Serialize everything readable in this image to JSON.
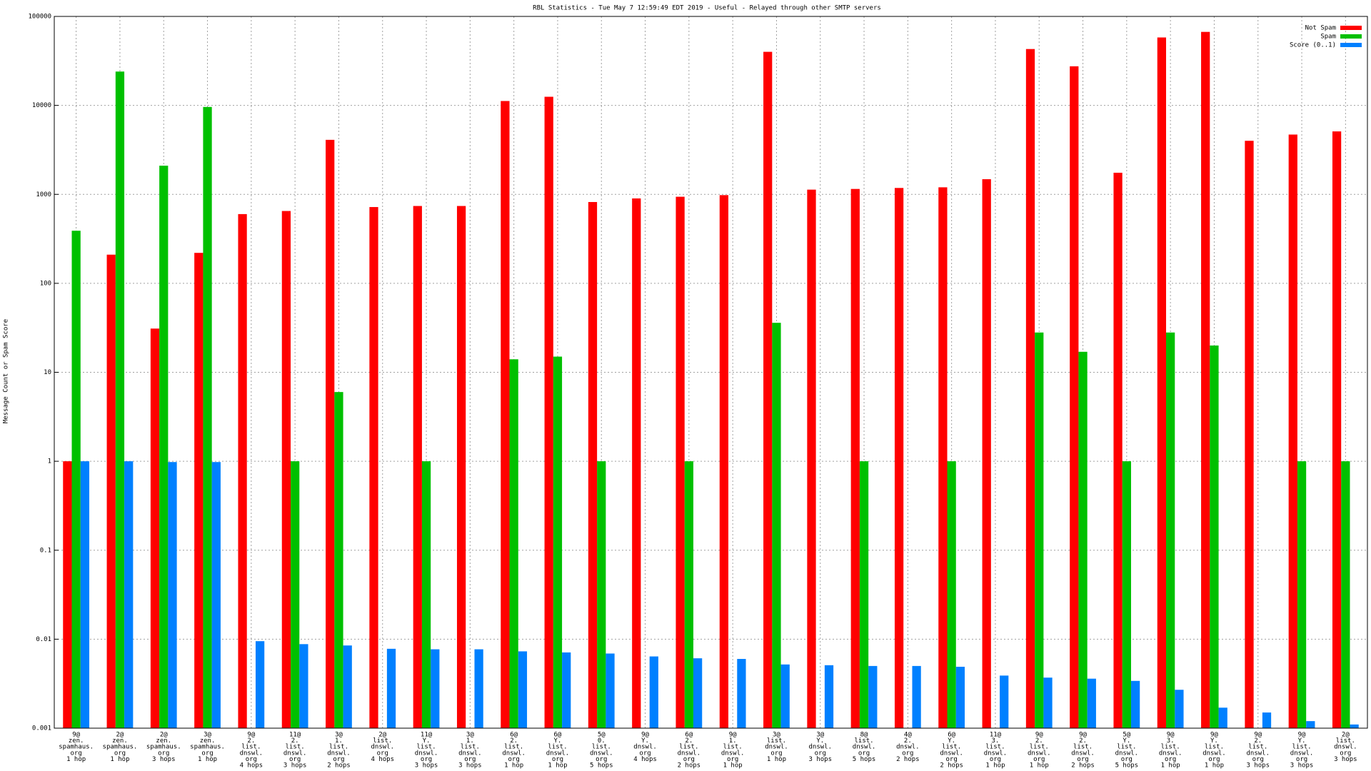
{
  "chart_data": {
    "type": "bar",
    "title": "RBL Statistics - Tue May  7 12:59:49 EDT 2019 - Useful - Relayed through other SMTP servers",
    "y_label": "Message Count or Spam Score",
    "log_y": true,
    "grid": true,
    "legend_position": "top-right",
    "ylim": [
      0.001,
      100000
    ],
    "yticks": [
      0.001,
      0.01,
      0.1,
      1,
      10,
      100,
      1000,
      10000,
      100000
    ],
    "categories": [
      [
        "9@",
        "zen.",
        "spamhaus.",
        "org",
        "1 hop"
      ],
      [
        "2@",
        "zen.",
        "spamhaus.",
        "org",
        "1 hop"
      ],
      [
        "2@",
        "zen.",
        "spamhaus.",
        "org",
        "3 hops"
      ],
      [
        "3@",
        "zen.",
        "spamhaus.",
        "org",
        "1 hop"
      ],
      [
        "9@",
        "2.",
        "list.",
        "dnswl.",
        "org",
        "4 hops"
      ],
      [
        "11@",
        "2.",
        "list.",
        "dnswl.",
        "org",
        "3 hops"
      ],
      [
        "3@",
        "1.",
        "list.",
        "dnswl.",
        "org",
        "2 hops"
      ],
      [
        "2@",
        "list.",
        "dnswl.",
        "org",
        "4 hops"
      ],
      [
        "11@",
        "Y.",
        "list.",
        "dnswl.",
        "org",
        "3 hops"
      ],
      [
        "3@",
        "1.",
        "list.",
        "dnswl.",
        "org",
        "3 hops"
      ],
      [
        "6@",
        "2.",
        "list.",
        "dnswl.",
        "org",
        "1 hop"
      ],
      [
        "6@",
        "Y.",
        "list.",
        "dnswl.",
        "org",
        "1 hop"
      ],
      [
        "5@",
        "0.",
        "list.",
        "dnswl.",
        "org",
        "5 hops"
      ],
      [
        "9@",
        "Y.",
        "dnswl.",
        "org",
        "4 hops"
      ],
      [
        "6@",
        "2.",
        "list.",
        "dnswl.",
        "org",
        "2 hops"
      ],
      [
        "9@",
        "1.",
        "list.",
        "dnswl.",
        "org",
        "1 hop"
      ],
      [
        "3@",
        "list.",
        "dnswl.",
        "org",
        "1 hop"
      ],
      [
        "3@",
        "Y.",
        "dnswl.",
        "org",
        "3 hops"
      ],
      [
        "8@",
        "list.",
        "dnswl.",
        "org",
        "5 hops"
      ],
      [
        "4@",
        "2.",
        "dnswl.",
        "org",
        "2 hops"
      ],
      [
        "6@",
        "Y.",
        "list.",
        "dnswl.",
        "org",
        "2 hops"
      ],
      [
        "11@",
        "3.",
        "list.",
        "dnswl.",
        "org",
        "1 hop"
      ],
      [
        "9@",
        "2.",
        "list.",
        "dnswl.",
        "org",
        "1 hop"
      ],
      [
        "9@",
        "2.",
        "list.",
        "dnswl.",
        "org",
        "2 hops"
      ],
      [
        "5@",
        "Y.",
        "list.",
        "dnswl.",
        "org",
        "5 hops"
      ],
      [
        "9@",
        "3.",
        "list.",
        "dnswl.",
        "org",
        "1 hop"
      ],
      [
        "9@",
        "Y.",
        "list.",
        "dnswl.",
        "org",
        "1 hop"
      ],
      [
        "9@",
        "2.",
        "list.",
        "dnswl.",
        "org",
        "3 hops"
      ],
      [
        "9@",
        "Y.",
        "list.",
        "dnswl.",
        "org",
        "3 hops"
      ],
      [
        "2@",
        "list.",
        "dnswl.",
        "org",
        "3 hops"
      ]
    ],
    "series": [
      {
        "name": "Not Spam",
        "color": "#ff0000",
        "values": [
          1,
          210,
          31,
          220,
          600,
          650,
          4100,
          720,
          740,
          740,
          11200,
          12500,
          820,
          900,
          940,
          980,
          40000,
          1130,
          1150,
          1180,
          1200,
          1480,
          43000,
          27500,
          1750,
          58000,
          67000,
          4000,
          4700,
          5100
        ]
      },
      {
        "name": "Spam",
        "color": "#00c000",
        "values": [
          390,
          24000,
          2100,
          9600,
          null,
          1,
          6,
          null,
          1,
          null,
          14,
          15,
          1,
          null,
          1,
          null,
          36,
          null,
          1,
          null,
          1,
          null,
          28,
          17,
          1,
          28,
          20,
          null,
          1,
          1
        ]
      },
      {
        "name": "Score (0..1)",
        "color": "#0080ff",
        "values": [
          1,
          1,
          0.98,
          0.98,
          0.0095,
          0.0088,
          0.0085,
          0.0078,
          0.0077,
          0.0077,
          0.0073,
          0.0071,
          0.0069,
          0.0064,
          0.0061,
          0.006,
          0.0052,
          0.0051,
          0.005,
          0.005,
          0.0049,
          0.0039,
          0.0037,
          0.0036,
          0.0034,
          0.0027,
          0.0017,
          0.0015,
          0.0012,
          0.0011
        ]
      }
    ]
  }
}
